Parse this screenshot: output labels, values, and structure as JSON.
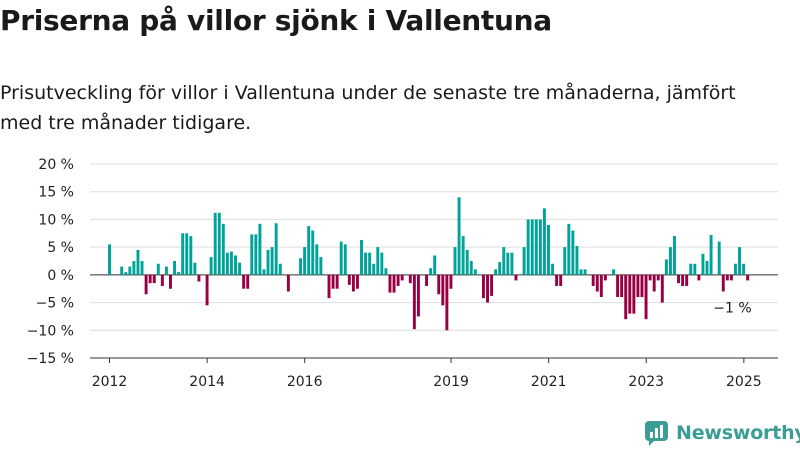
{
  "title": "Priserna på villor sjönk i Vallentuna",
  "subtitle": "Prisutveckling för villor i Vallentuna under de senaste tre månaderna, jämfört med tre månader tidigare.",
  "brand": "Newsworthy",
  "colors": {
    "positive": "#00a398",
    "negative": "#990044",
    "brand": "#3b9d94"
  },
  "chart_data": {
    "type": "bar",
    "ylim": [
      -15,
      20
    ],
    "yticks": [
      20,
      15,
      10,
      5,
      0,
      -5,
      -10,
      -15
    ],
    "ytick_labels": [
      "20 %",
      "15 %",
      "10 %",
      "5 %",
      "0 %",
      "−5 %",
      "−10 %",
      "−15 %"
    ],
    "xlim": [
      2011.6,
      2025.7
    ],
    "xticks": [
      2012,
      2014,
      2016,
      2019,
      2021,
      2023,
      2025
    ],
    "xtick_labels": [
      "2012",
      "2014",
      "2016",
      "2019",
      "2021",
      "2023",
      "2025"
    ],
    "start": 2012.0,
    "step": 0.0833,
    "values": [
      5.5,
      0,
      0,
      1.5,
      0.5,
      1.5,
      2.5,
      4.5,
      2.5,
      -3.5,
      -1.5,
      -1.5,
      2,
      -2,
      1.5,
      -2.5,
      2.5,
      0.5,
      7.5,
      7.5,
      7,
      2.2,
      -1.2,
      0,
      -5.5,
      3.2,
      11.2,
      11.2,
      9.2,
      4,
      4.2,
      3.5,
      2.2,
      -2.5,
      -2.5,
      7.3,
      7.3,
      9.2,
      1,
      4.5,
      5,
      9.3,
      2,
      0,
      -3,
      0,
      0,
      3,
      5,
      8.8,
      8,
      5.5,
      3.2,
      0,
      -4.2,
      -2.5,
      -2.5,
      6,
      5.5,
      -1.8,
      -3,
      -2.5,
      6.3,
      4,
      4,
      2,
      5,
      4,
      1.2,
      -3.2,
      -3.2,
      -2,
      -1,
      0,
      -1.5,
      -9.8,
      -7.5,
      0,
      -2,
      1.2,
      3.5,
      -3.5,
      -5.5,
      -10,
      -2.5,
      5,
      14,
      7,
      4.5,
      2.5,
      1,
      0,
      -4.2,
      -5,
      -3.8,
      1,
      2.3,
      5,
      4,
      4,
      -1,
      0,
      5,
      10,
      10,
      10,
      10,
      12,
      9,
      2,
      -2,
      -2,
      5,
      9.2,
      8,
      5.2,
      1,
      1,
      0,
      -2,
      -3,
      -4,
      -1,
      0,
      1,
      -4,
      -4,
      -8,
      -7,
      -7,
      -4,
      -4,
      -8,
      -1,
      -3,
      -1,
      -5,
      2.8,
      5,
      7,
      -1.5,
      -2,
      -2,
      2,
      2,
      -1,
      3.8,
      2.5,
      7.2,
      0,
      6,
      -3,
      -1,
      -1,
      2,
      5,
      2,
      -1
    ]
  },
  "annotation": {
    "label": "−1 %",
    "value": -1
  }
}
